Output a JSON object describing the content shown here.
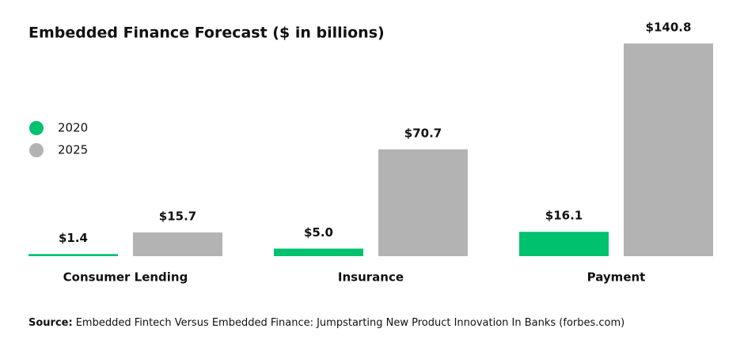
{
  "chart_data": {
    "type": "bar",
    "title": "Embedded Finance Forecast ($ in billions)",
    "categories": [
      "Consumer Lending",
      "Insurance",
      "Payment"
    ],
    "series": [
      {
        "name": "2020",
        "color": "#00c16e",
        "values": [
          1.4,
          5.0,
          16.1
        ],
        "value_labels": [
          "$1.4",
          "$5.0",
          "$16.1"
        ]
      },
      {
        "name": "2025",
        "color": "#b3b3b3",
        "values": [
          15.7,
          70.7,
          140.8
        ],
        "value_labels": [
          "$15.7",
          "$70.7",
          "$140.8"
        ]
      }
    ],
    "legend": "left",
    "source_label": "Source:",
    "source": "Embedded Fintech Versus Embedded Finance: Jumpstarting New Product Innovation In Banks (forbes.com)"
  }
}
